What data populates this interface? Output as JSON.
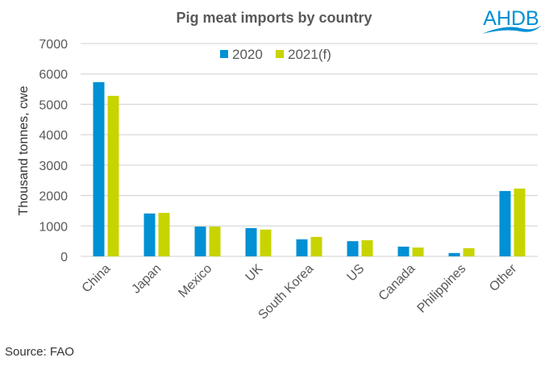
{
  "logo_text": "AHDB",
  "source": "Source: FAO",
  "colors": {
    "s2020": "#0090D4",
    "s2021": "#C8D400",
    "text": "#595959",
    "grid": "#D9D9D9",
    "logo": "#0090D4"
  },
  "chart_data": {
    "type": "bar",
    "title": "Pig meat imports by country",
    "xlabel": "",
    "ylabel": "Thousand tonnes, cwe",
    "ylim": [
      0,
      7000
    ],
    "yticks": [
      "0",
      "1000",
      "2000",
      "3000",
      "4000",
      "5000",
      "6000",
      "7000"
    ],
    "grid": true,
    "legend_position": "top-center",
    "categories": [
      "China",
      "Japan",
      "Mexico",
      "UK",
      "South Korea",
      "US",
      "Canada",
      "Philippines",
      "Other"
    ],
    "series": [
      {
        "name": "2020",
        "values": [
          5730,
          1410,
          980,
          930,
          560,
          500,
          320,
          110,
          2150
        ]
      },
      {
        "name": "2021(f)",
        "values": [
          5280,
          1430,
          980,
          880,
          640,
          530,
          290,
          270,
          2230
        ]
      }
    ]
  }
}
